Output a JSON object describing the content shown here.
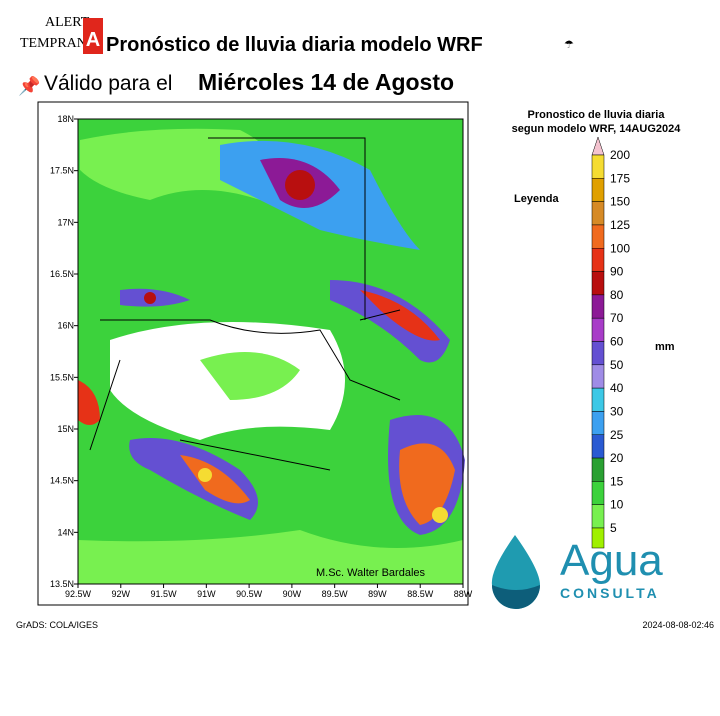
{
  "header": {
    "logo": [
      "ALERT",
      "TEMPRAN",
      "A"
    ],
    "title": "Pronóstico de lluvia diaria modelo WRF",
    "subtitle": "Válido para el",
    "date": "Miércoles 14 de Agosto"
  },
  "map": {
    "title": [
      "Pronostico de lluvia diaria",
      "segun modelo WRF,    14AUG2024"
    ],
    "lat_labels": [
      "18N",
      "17.5N",
      "17N",
      "16.5N",
      "16N",
      "15.5N",
      "15N",
      "14.5N",
      "14N",
      "13.5N"
    ],
    "lon_labels": [
      "92.5W",
      "92W",
      "91.5W",
      "91W",
      "90.5W",
      "90W",
      "89.5W",
      "89W",
      "88.5W",
      "88W"
    ],
    "credit": "M.Sc. Walter Bardales",
    "legend": {
      "title": "Leyenda",
      "unit": "mm",
      "levels": [
        200,
        175,
        150,
        125,
        100,
        90,
        80,
        70,
        60,
        50,
        40,
        30,
        25,
        20,
        15,
        10,
        5
      ],
      "colors": [
        "#f4c3cf",
        "#f5dc32",
        "#e0a000",
        "#d68a26",
        "#f06a1e",
        "#e63217",
        "#b80f0f",
        "#8c1a96",
        "#a83cc8",
        "#6450d2",
        "#9f8ce6",
        "#3cc8e6",
        "#3ca0f0",
        "#2a5ad2",
        "#2aa032",
        "#3cd23c",
        "#78f050",
        "#a0f000"
      ]
    }
  },
  "footer": {
    "left": "GrADS: COLA/IGES",
    "right": "2024-08-08-02:46"
  },
  "brand": {
    "word": "Agua",
    "sub": "CONSULTA"
  }
}
